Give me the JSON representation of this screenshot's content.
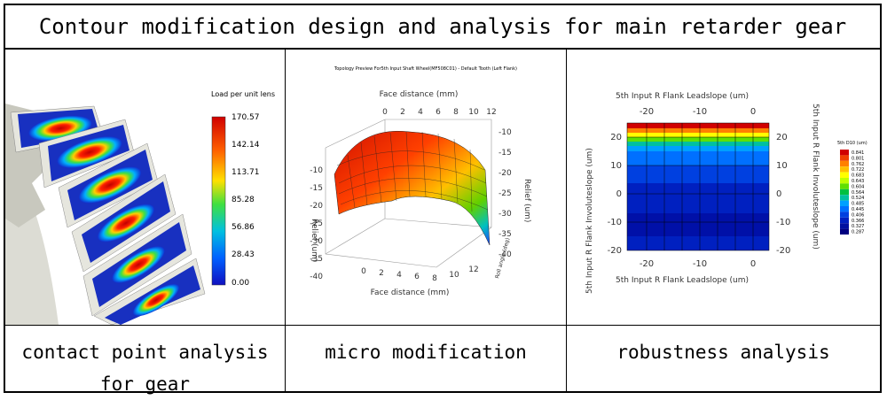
{
  "title": "Contour modification design and analysis for main retarder gear",
  "captions": [
    {
      "line1": "contact point analysis",
      "line2": "for gear"
    },
    {
      "line1": "micro modification",
      "line2": ""
    },
    {
      "line1": "robustness analysis",
      "line2": ""
    }
  ],
  "panel1": {
    "legend_title": "Load per unit lens",
    "legend_ticks": [
      "170.57",
      "142.14",
      "113.71",
      "85.28",
      "56.86",
      "28.43",
      "0.00"
    ]
  },
  "panel2": {
    "title": "Topology Preview For5th Input Shaft Wheel(MF508C01) - Default Tooth (Left Flank)",
    "top_axis_label": "Face distance (mm)",
    "bottom_axis_label": "Face distance (mm)",
    "left_axis_label": "Relief (um)",
    "right_axis_label": "Relief (um)",
    "roll_angle_label": "Roll angle (deg)",
    "face_ticks": [
      "0",
      "2",
      "4",
      "6",
      "8",
      "10",
      "12"
    ],
    "left_relief_ticks": [
      "-10",
      "-15",
      "-20",
      "-25",
      "-30",
      "-35",
      "-40"
    ],
    "right_relief_ticks": [
      "-10",
      "-15",
      "-20",
      "-25",
      "-30",
      "-35",
      "-40"
    ]
  },
  "panel3": {
    "top_axis_label": "5th Input R Flank Leadslope (um)",
    "bottom_axis_label": "5th Input R Flank Leadslope (um)",
    "left_axis_label": "5th Input R Flank Involuteslope (um)",
    "right_axis_label": "5th Input R Flank Involuteslope (um)",
    "x_ticks": [
      "-20",
      "-10",
      "0"
    ],
    "y_ticks": [
      "20",
      "10",
      "0",
      "-10",
      "-20"
    ],
    "legend_title": "5th D10 (um)",
    "legend_values": [
      "0.841",
      "0.801",
      "0.762",
      "0.722",
      "0.683",
      "0.643",
      "0.604",
      "0.564",
      "0.524",
      "0.485",
      "0.445",
      "0.406",
      "0.366",
      "0.327",
      "0.287"
    ],
    "legend_colors": [
      "#d00000",
      "#f04000",
      "#ff8000",
      "#ffc000",
      "#ffff00",
      "#c0ff00",
      "#60e000",
      "#00c040",
      "#00c0a0",
      "#00a0ff",
      "#0070ff",
      "#0040e0",
      "#0020c0",
      "#0010a0",
      "#000080"
    ]
  }
}
